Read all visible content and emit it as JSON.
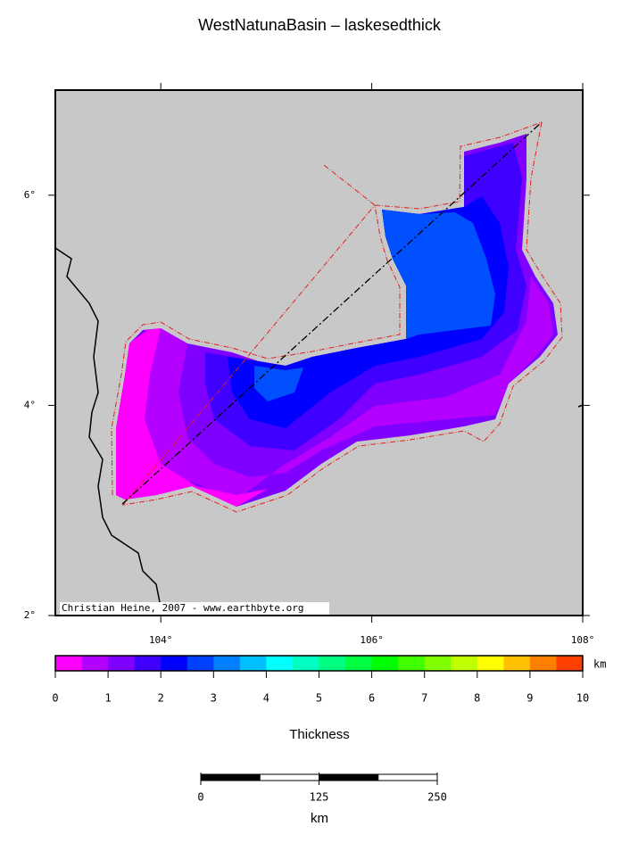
{
  "title": "WestNatunaBasin – laskesedthick",
  "map": {
    "lat_labels": [
      {
        "value": 2,
        "label": "2°"
      },
      {
        "value": 4,
        "label": "4°"
      },
      {
        "value": 6,
        "label": "6°"
      }
    ],
    "lon_labels": [
      {
        "value": 104,
        "label": "104°"
      },
      {
        "value": 106,
        "label": "106°"
      },
      {
        "value": 108,
        "label": "108°"
      }
    ],
    "credit": "Christian Heine, 2007 - www.earthbyte.org"
  },
  "colorbar": {
    "ticks": [
      0,
      1,
      2,
      3,
      4,
      5,
      6,
      7,
      8,
      9,
      10
    ],
    "unit": "km",
    "label": "Thickness",
    "colors": [
      "#ff00ff",
      "#b400ff",
      "#8000ff",
      "#4000ff",
      "#0000ff",
      "#0040ff",
      "#0080ff",
      "#00c0ff",
      "#00ffff",
      "#00ffc0",
      "#00ff80",
      "#00ff40",
      "#00ff00",
      "#40ff00",
      "#80ff00",
      "#c0ff00",
      "#ffff00",
      "#ffc000",
      "#ff8000",
      "#ff4000"
    ]
  },
  "scale_bar": {
    "ticks": [
      0,
      125,
      250
    ],
    "unit": "km"
  }
}
